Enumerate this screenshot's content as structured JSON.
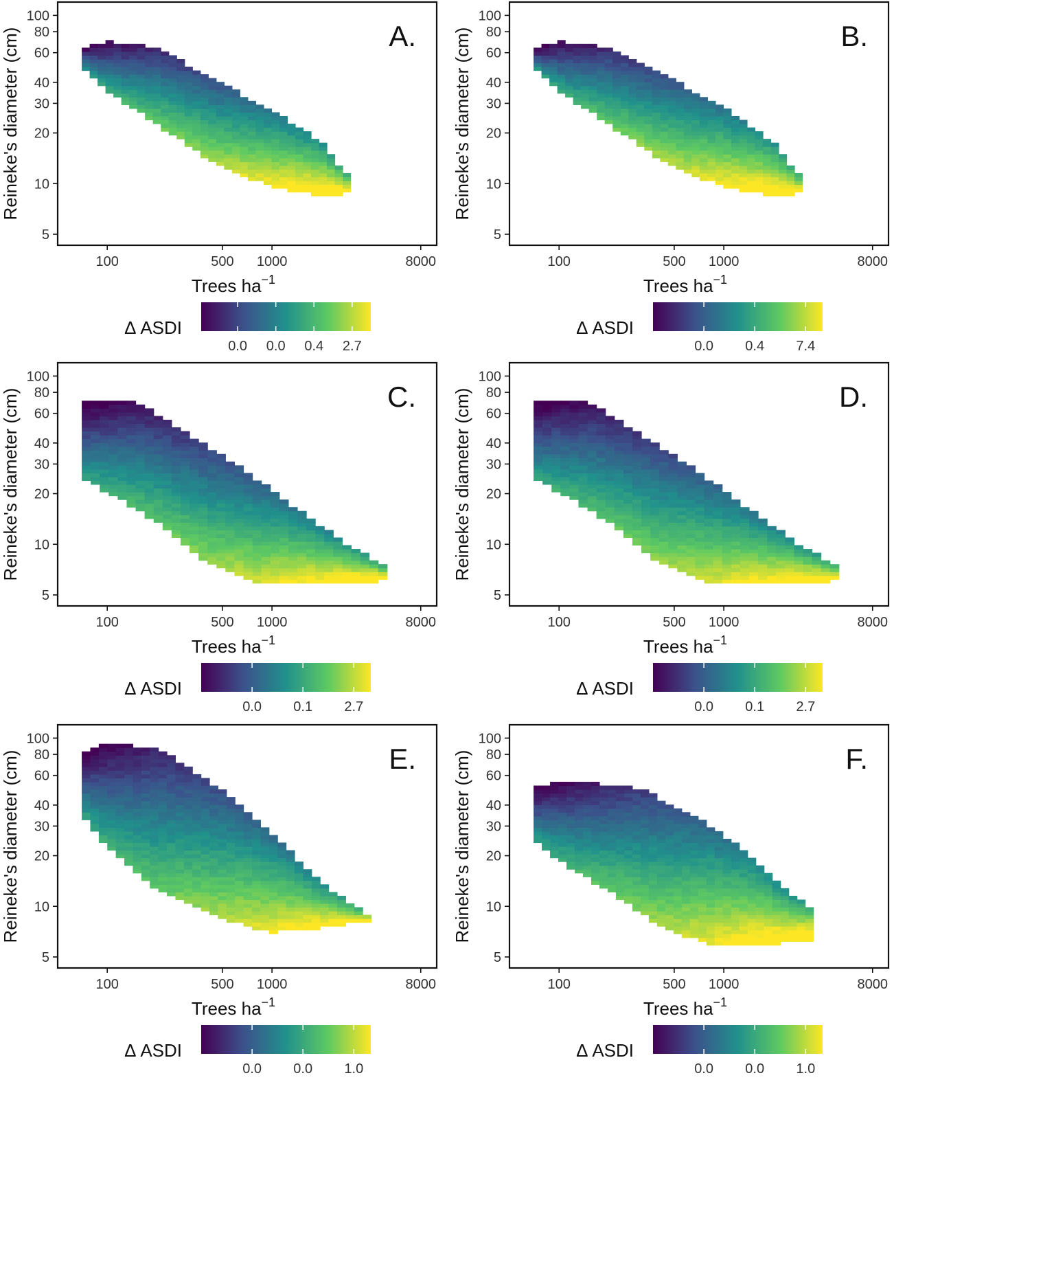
{
  "chart_data": [
    {
      "type": "heatmap",
      "panel_label": "A.",
      "xlabel": "Trees ha",
      "xlabel_sup": "−1",
      "ylabel": "Reineke's diameter (cm)",
      "x_scale": "log",
      "y_scale": "log",
      "xlim": [
        50,
        10000
      ],
      "ylim": [
        4.3,
        120
      ],
      "xticks": [
        100,
        500,
        1000,
        8000
      ],
      "yticks": [
        5,
        10,
        20,
        30,
        40,
        60,
        80,
        100
      ],
      "colorbar_title": "Δ ASDI",
      "colorbar_ticks": [
        "0.0",
        "0.0",
        "0.4",
        "2.7"
      ],
      "colormap": [
        "#440154",
        "#3b528b",
        "#21918c",
        "#5ec962",
        "#fde725"
      ],
      "region": {
        "upper_edge": [
          [
            70,
            65
          ],
          [
            100,
            72
          ],
          [
            200,
            66
          ],
          [
            500,
            40
          ],
          [
            1000,
            28
          ],
          [
            2000,
            18
          ],
          [
            3000,
            11
          ]
        ],
        "lower_edge": [
          [
            70,
            48
          ],
          [
            100,
            34
          ],
          [
            200,
            22
          ],
          [
            500,
            12
          ],
          [
            1000,
            9.3
          ],
          [
            2000,
            8.2
          ],
          [
            3000,
            8.5
          ]
        ]
      }
    },
    {
      "type": "heatmap",
      "panel_label": "B.",
      "xlabel": "Trees ha",
      "xlabel_sup": "−1",
      "ylabel": "Reineke's diameter (cm)",
      "x_scale": "log",
      "y_scale": "log",
      "xlim": [
        50,
        10000
      ],
      "ylim": [
        4.3,
        120
      ],
      "xticks": [
        100,
        500,
        1000,
        8000
      ],
      "yticks": [
        5,
        10,
        20,
        30,
        40,
        60,
        80,
        100
      ],
      "colorbar_title": "Δ ASDI",
      "colorbar_ticks": [
        "0.0",
        "0.4",
        "7.4"
      ],
      "colormap": [
        "#440154",
        "#3b528b",
        "#21918c",
        "#5ec962",
        "#fde725"
      ],
      "region": {
        "upper_edge": [
          [
            70,
            65
          ],
          [
            100,
            72
          ],
          [
            200,
            66
          ],
          [
            500,
            42
          ],
          [
            1000,
            29
          ],
          [
            2000,
            18
          ],
          [
            3000,
            11
          ]
        ],
        "lower_edge": [
          [
            70,
            48
          ],
          [
            100,
            34
          ],
          [
            200,
            22
          ],
          [
            500,
            12
          ],
          [
            1000,
            9.3
          ],
          [
            2000,
            8.2
          ],
          [
            3000,
            8.5
          ]
        ]
      }
    },
    {
      "type": "heatmap",
      "panel_label": "C.",
      "xlabel": "Trees ha",
      "xlabel_sup": "−1",
      "ylabel": "Reineke's diameter (cm)",
      "x_scale": "log",
      "y_scale": "log",
      "xlim": [
        50,
        10000
      ],
      "ylim": [
        4.3,
        120
      ],
      "xticks": [
        100,
        500,
        1000,
        8000
      ],
      "yticks": [
        5,
        10,
        20,
        30,
        40,
        60,
        80,
        100
      ],
      "colorbar_title": "Δ ASDI",
      "colorbar_ticks": [
        "0.0",
        "0.1",
        "2.7"
      ],
      "colormap": [
        "#440154",
        "#3b528b",
        "#21918c",
        "#5ec962",
        "#fde725"
      ],
      "region": {
        "upper_edge": [
          [
            70,
            72
          ],
          [
            150,
            72
          ],
          [
            300,
            48
          ],
          [
            700,
            28
          ],
          [
            1500,
            16
          ],
          [
            3000,
            10
          ],
          [
            5000,
            7.5
          ]
        ],
        "lower_edge": [
          [
            70,
            24
          ],
          [
            100,
            20
          ],
          [
            200,
            13
          ],
          [
            400,
            7.5
          ],
          [
            800,
            5.8
          ],
          [
            2000,
            5.6
          ],
          [
            5000,
            5.9
          ]
        ]
      }
    },
    {
      "type": "heatmap",
      "panel_label": "D.",
      "xlabel": "Trees ha",
      "xlabel_sup": "−1",
      "ylabel": "Reineke's diameter (cm)",
      "x_scale": "log",
      "y_scale": "log",
      "xlim": [
        50,
        10000
      ],
      "ylim": [
        4.3,
        120
      ],
      "xticks": [
        100,
        500,
        1000,
        8000
      ],
      "yticks": [
        5,
        10,
        20,
        30,
        40,
        60,
        80,
        100
      ],
      "colorbar_title": "Δ ASDI",
      "colorbar_ticks": [
        "0.0",
        "0.1",
        "2.7"
      ],
      "colormap": [
        "#440154",
        "#3b528b",
        "#21918c",
        "#5ec962",
        "#fde725"
      ],
      "region": {
        "upper_edge": [
          [
            70,
            72
          ],
          [
            150,
            72
          ],
          [
            300,
            48
          ],
          [
            700,
            28
          ],
          [
            1500,
            16
          ],
          [
            3000,
            10
          ],
          [
            5000,
            7.5
          ]
        ],
        "lower_edge": [
          [
            70,
            24
          ],
          [
            100,
            20
          ],
          [
            200,
            13
          ],
          [
            400,
            7.5
          ],
          [
            800,
            5.8
          ],
          [
            2000,
            5.6
          ],
          [
            5000,
            5.9
          ]
        ]
      }
    },
    {
      "type": "heatmap",
      "panel_label": "E.",
      "xlabel": "Trees ha",
      "xlabel_sup": "−1",
      "ylabel": "Reineke's diameter (cm)",
      "x_scale": "log",
      "y_scale": "log",
      "xlim": [
        50,
        10000
      ],
      "ylim": [
        4.3,
        120
      ],
      "xticks": [
        100,
        500,
        1000,
        8000
      ],
      "yticks": [
        5,
        10,
        20,
        30,
        40,
        60,
        80,
        100
      ],
      "colorbar_title": "Δ ASDI",
      "colorbar_ticks": [
        "0.0",
        "0.0",
        "1.0"
      ],
      "colormap": [
        "#440154",
        "#3b528b",
        "#21918c",
        "#5ec962",
        "#fde725"
      ],
      "region": {
        "upper_edge": [
          [
            70,
            85
          ],
          [
            100,
            95
          ],
          [
            200,
            90
          ],
          [
            500,
            50
          ],
          [
            1000,
            28
          ],
          [
            2000,
            14
          ],
          [
            4000,
            9
          ]
        ],
        "lower_edge": [
          [
            70,
            34
          ],
          [
            100,
            22
          ],
          [
            200,
            12
          ],
          [
            500,
            8.2
          ],
          [
            1000,
            6.8
          ],
          [
            2000,
            7.2
          ],
          [
            4000,
            8
          ]
        ]
      }
    },
    {
      "type": "heatmap",
      "panel_label": "F.",
      "xlabel": "Trees ha",
      "xlabel_sup": "−1",
      "ylabel": "Reineke's diameter (cm)",
      "x_scale": "log",
      "y_scale": "log",
      "xlim": [
        50,
        10000
      ],
      "ylim": [
        4.3,
        120
      ],
      "xticks": [
        100,
        500,
        1000,
        8000
      ],
      "yticks": [
        5,
        10,
        20,
        30,
        40,
        60,
        80,
        100
      ],
      "colorbar_title": "Δ ASDI",
      "colorbar_ticks": [
        "0.0",
        "0.0",
        "1.0"
      ],
      "colormap": [
        "#440154",
        "#3b528b",
        "#21918c",
        "#5ec962",
        "#fde725"
      ],
      "region": {
        "upper_edge": [
          [
            70,
            52
          ],
          [
            100,
            58
          ],
          [
            300,
            52
          ],
          [
            700,
            35
          ],
          [
            1500,
            20
          ],
          [
            2500,
            12
          ],
          [
            3500,
            10
          ]
        ],
        "lower_edge": [
          [
            70,
            24
          ],
          [
            100,
            18
          ],
          [
            200,
            12
          ],
          [
            400,
            7.5
          ],
          [
            800,
            5.8
          ],
          [
            2000,
            5.8
          ],
          [
            3500,
            6.2
          ]
        ]
      }
    }
  ]
}
